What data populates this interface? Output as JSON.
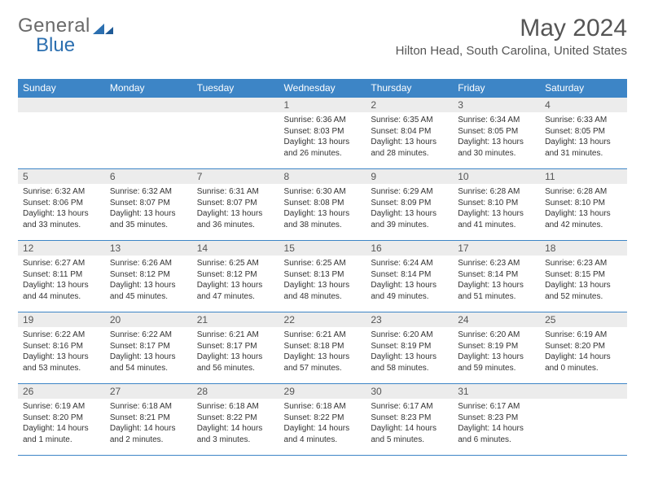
{
  "brand": {
    "text1": "General",
    "text2": "Blue",
    "gray": "#6a6a6a",
    "blue": "#2b6fb0"
  },
  "title": "May 2024",
  "location": "Hilton Head, South Carolina, United States",
  "colors": {
    "header_bg": "#3d85c6",
    "header_text": "#ffffff",
    "daynum_bg": "#ececec",
    "border": "#3d85c6",
    "body_text": "#333333"
  },
  "weekdays": [
    "Sunday",
    "Monday",
    "Tuesday",
    "Wednesday",
    "Thursday",
    "Friday",
    "Saturday"
  ],
  "weeks": [
    [
      null,
      null,
      null,
      {
        "n": "1",
        "sr": "6:36 AM",
        "ss": "8:03 PM",
        "dl": "13 hours and 26 minutes."
      },
      {
        "n": "2",
        "sr": "6:35 AM",
        "ss": "8:04 PM",
        "dl": "13 hours and 28 minutes."
      },
      {
        "n": "3",
        "sr": "6:34 AM",
        "ss": "8:05 PM",
        "dl": "13 hours and 30 minutes."
      },
      {
        "n": "4",
        "sr": "6:33 AM",
        "ss": "8:05 PM",
        "dl": "13 hours and 31 minutes."
      }
    ],
    [
      {
        "n": "5",
        "sr": "6:32 AM",
        "ss": "8:06 PM",
        "dl": "13 hours and 33 minutes."
      },
      {
        "n": "6",
        "sr": "6:32 AM",
        "ss": "8:07 PM",
        "dl": "13 hours and 35 minutes."
      },
      {
        "n": "7",
        "sr": "6:31 AM",
        "ss": "8:07 PM",
        "dl": "13 hours and 36 minutes."
      },
      {
        "n": "8",
        "sr": "6:30 AM",
        "ss": "8:08 PM",
        "dl": "13 hours and 38 minutes."
      },
      {
        "n": "9",
        "sr": "6:29 AM",
        "ss": "8:09 PM",
        "dl": "13 hours and 39 minutes."
      },
      {
        "n": "10",
        "sr": "6:28 AM",
        "ss": "8:10 PM",
        "dl": "13 hours and 41 minutes."
      },
      {
        "n": "11",
        "sr": "6:28 AM",
        "ss": "8:10 PM",
        "dl": "13 hours and 42 minutes."
      }
    ],
    [
      {
        "n": "12",
        "sr": "6:27 AM",
        "ss": "8:11 PM",
        "dl": "13 hours and 44 minutes."
      },
      {
        "n": "13",
        "sr": "6:26 AM",
        "ss": "8:12 PM",
        "dl": "13 hours and 45 minutes."
      },
      {
        "n": "14",
        "sr": "6:25 AM",
        "ss": "8:12 PM",
        "dl": "13 hours and 47 minutes."
      },
      {
        "n": "15",
        "sr": "6:25 AM",
        "ss": "8:13 PM",
        "dl": "13 hours and 48 minutes."
      },
      {
        "n": "16",
        "sr": "6:24 AM",
        "ss": "8:14 PM",
        "dl": "13 hours and 49 minutes."
      },
      {
        "n": "17",
        "sr": "6:23 AM",
        "ss": "8:14 PM",
        "dl": "13 hours and 51 minutes."
      },
      {
        "n": "18",
        "sr": "6:23 AM",
        "ss": "8:15 PM",
        "dl": "13 hours and 52 minutes."
      }
    ],
    [
      {
        "n": "19",
        "sr": "6:22 AM",
        "ss": "8:16 PM",
        "dl": "13 hours and 53 minutes."
      },
      {
        "n": "20",
        "sr": "6:22 AM",
        "ss": "8:17 PM",
        "dl": "13 hours and 54 minutes."
      },
      {
        "n": "21",
        "sr": "6:21 AM",
        "ss": "8:17 PM",
        "dl": "13 hours and 56 minutes."
      },
      {
        "n": "22",
        "sr": "6:21 AM",
        "ss": "8:18 PM",
        "dl": "13 hours and 57 minutes."
      },
      {
        "n": "23",
        "sr": "6:20 AM",
        "ss": "8:19 PM",
        "dl": "13 hours and 58 minutes."
      },
      {
        "n": "24",
        "sr": "6:20 AM",
        "ss": "8:19 PM",
        "dl": "13 hours and 59 minutes."
      },
      {
        "n": "25",
        "sr": "6:19 AM",
        "ss": "8:20 PM",
        "dl": "14 hours and 0 minutes."
      }
    ],
    [
      {
        "n": "26",
        "sr": "6:19 AM",
        "ss": "8:20 PM",
        "dl": "14 hours and 1 minute."
      },
      {
        "n": "27",
        "sr": "6:18 AM",
        "ss": "8:21 PM",
        "dl": "14 hours and 2 minutes."
      },
      {
        "n": "28",
        "sr": "6:18 AM",
        "ss": "8:22 PM",
        "dl": "14 hours and 3 minutes."
      },
      {
        "n": "29",
        "sr": "6:18 AM",
        "ss": "8:22 PM",
        "dl": "14 hours and 4 minutes."
      },
      {
        "n": "30",
        "sr": "6:17 AM",
        "ss": "8:23 PM",
        "dl": "14 hours and 5 minutes."
      },
      {
        "n": "31",
        "sr": "6:17 AM",
        "ss": "8:23 PM",
        "dl": "14 hours and 6 minutes."
      },
      null
    ]
  ],
  "labels": {
    "sunrise": "Sunrise: ",
    "sunset": "Sunset: ",
    "daylight": "Daylight: "
  }
}
